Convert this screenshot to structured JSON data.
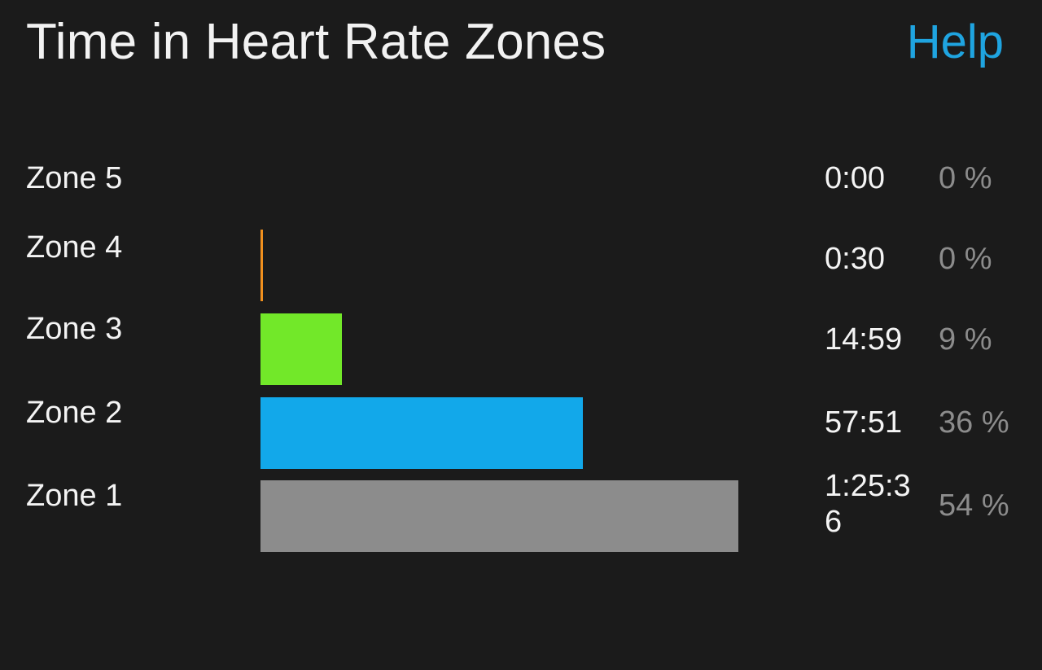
{
  "header": {
    "title": "Time in Heart Rate Zones",
    "help_label": "Help"
  },
  "colors": {
    "background": "#1b1b1b",
    "accent": "#1fa4e0",
    "zone5": "#d32f2f",
    "zone4": "#f0901e",
    "zone3": "#72e829",
    "zone2": "#12a8ea",
    "zone1": "#8c8c8c"
  },
  "zones": [
    {
      "label": "Zone 5",
      "time": "0:00",
      "percent": "0 %",
      "fraction": 0.0,
      "color": "#d32f2f"
    },
    {
      "label": "Zone 4",
      "time": "0:30",
      "percent": "0 %",
      "fraction": 0.005,
      "color": "#f0901e"
    },
    {
      "label": "Zone 3",
      "time": "14:59",
      "percent": "9 %",
      "fraction": 0.17,
      "color": "#72e829"
    },
    {
      "label": "Zone 2",
      "time": "57:51",
      "percent": "36 %",
      "fraction": 0.675,
      "color": "#12a8ea"
    },
    {
      "label": "Zone 1",
      "time": "1:25:36",
      "percent": "54 %",
      "fraction": 1.0,
      "color": "#8c8c8c"
    }
  ]
}
